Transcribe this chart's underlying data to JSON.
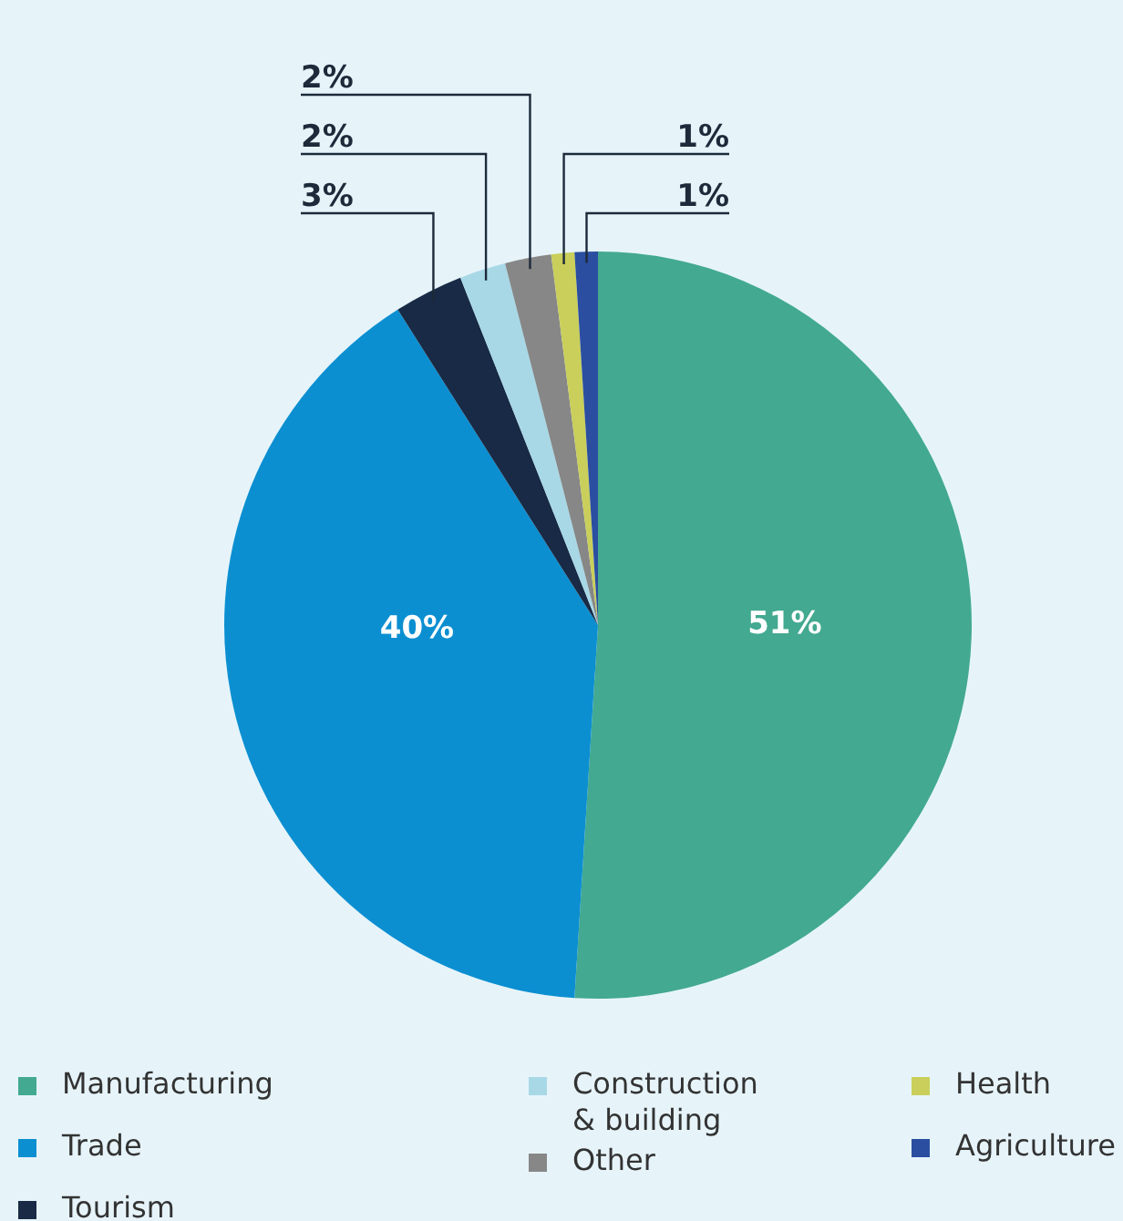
{
  "chart_data": {
    "type": "pie",
    "categories": [
      "Manufacturing",
      "Trade",
      "Tourism",
      "Construction\n& building",
      "Other",
      "Health",
      "Agriculture"
    ],
    "values": [
      51,
      40,
      3,
      2,
      2,
      1,
      1
    ],
    "colors": [
      "#43a991",
      "#0b8fd1",
      "#182a45",
      "#a8d8e6",
      "#878787",
      "#c9cf5a",
      "#2b4ea0"
    ],
    "value_labels": [
      "51%",
      "40%",
      "3%",
      "2%",
      "2%",
      "1%",
      "1%"
    ],
    "legend": "bottom"
  }
}
